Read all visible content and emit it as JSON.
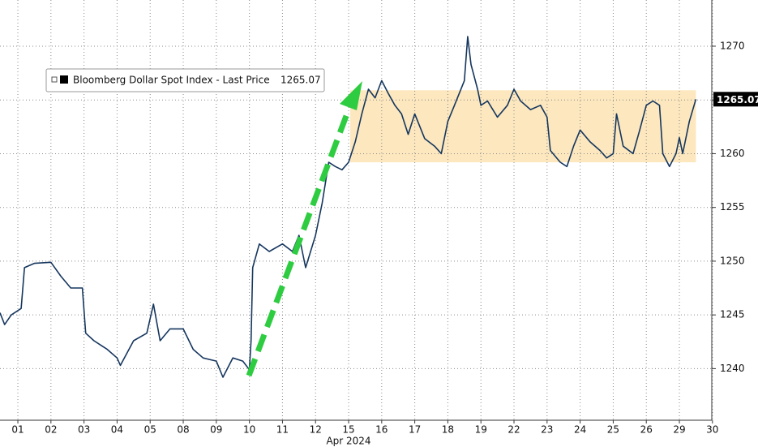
{
  "chart_data": {
    "type": "line",
    "series": [
      {
        "name": "Bloomberg Dollar Spot Index - Last Price",
        "color": "#15365e",
        "x": [
          -0.54,
          -0.4,
          -0.2,
          0.1,
          0.2,
          0.5,
          1,
          1.3,
          1.6,
          1.95,
          2.05,
          2.3,
          2.7,
          3,
          3.1,
          3.5,
          3.9,
          4.1,
          4.3,
          4.6,
          5,
          5.3,
          5.6,
          6,
          6.2,
          6.5,
          6.8,
          7,
          7.05,
          7.1,
          7.3,
          7.6,
          8,
          8.3,
          8.5,
          8.7,
          9,
          9.2,
          9.4,
          9.6,
          9.8,
          10,
          10.2,
          10.4,
          10.6,
          10.8,
          11,
          11.2,
          11.4,
          11.6,
          11.8,
          12,
          12.3,
          12.6,
          12.8,
          13,
          13.2,
          13.5,
          13.6,
          13.7,
          13.9,
          14,
          14.2,
          14.5,
          14.8,
          15,
          15.2,
          15.5,
          15.8,
          16,
          16.1,
          16.4,
          16.6,
          16.8,
          17,
          17.3,
          17.6,
          17.8,
          18,
          18.1,
          18.3,
          18.6,
          18.8,
          19,
          19.2,
          19.4,
          19.5,
          19.7,
          19.9,
          20,
          20.1,
          20.3,
          20.5
        ],
        "values": [
          1245.2,
          1244.1,
          1245,
          1245.6,
          1249.4,
          1249.8,
          1249.9,
          1248.6,
          1247.5,
          1247.5,
          1243.3,
          1242.6,
          1241.8,
          1241,
          1240.3,
          1242.6,
          1243.3,
          1246,
          1242.6,
          1243.7,
          1243.7,
          1241.8,
          1241,
          1240.7,
          1239.2,
          1241,
          1240.7,
          1239.9,
          1242.6,
          1249.4,
          1251.6,
          1250.9,
          1251.6,
          1250.9,
          1252.4,
          1249.4,
          1252.4,
          1255.4,
          1259.2,
          1258.8,
          1258.5,
          1259.2,
          1261.1,
          1263.7,
          1266,
          1265.2,
          1266.8,
          1265.6,
          1264.5,
          1263.7,
          1261.8,
          1263.7,
          1261.4,
          1260.7,
          1260,
          1263,
          1264.5,
          1266.8,
          1270.9,
          1268.3,
          1266,
          1264.5,
          1264.9,
          1263.4,
          1264.5,
          1266,
          1264.9,
          1264.1,
          1264.5,
          1263.4,
          1260.3,
          1259.2,
          1258.8,
          1260.7,
          1262.2,
          1261.1,
          1260.3,
          1259.6,
          1260,
          1263.7,
          1260.7,
          1260,
          1262.2,
          1264.5,
          1264.9,
          1264.5,
          1260,
          1258.8,
          1260,
          1261.5,
          1260,
          1263,
          1265.07
        ]
      }
    ],
    "xlim": [
      -0.54,
      20.98
    ],
    "xticks": [
      {
        "value": 0,
        "label": "01"
      },
      {
        "value": 1,
        "label": "02"
      },
      {
        "value": 2,
        "label": "03"
      },
      {
        "value": 3,
        "label": "04"
      },
      {
        "value": 4,
        "label": "05"
      },
      {
        "value": 5,
        "label": "08"
      },
      {
        "value": 6,
        "label": "09"
      },
      {
        "value": 7,
        "label": "10"
      },
      {
        "value": 8,
        "label": "11"
      },
      {
        "value": 9,
        "label": "12"
      },
      {
        "value": 10,
        "label": "15"
      },
      {
        "value": 11,
        "label": "16"
      },
      {
        "value": 12,
        "label": "17"
      },
      {
        "value": 13,
        "label": "18"
      },
      {
        "value": 14,
        "label": "19"
      },
      {
        "value": 15,
        "label": "22"
      },
      {
        "value": 16,
        "label": "23"
      },
      {
        "value": 17,
        "label": "24"
      },
      {
        "value": 18,
        "label": "25"
      },
      {
        "value": 19,
        "label": "26"
      },
      {
        "value": 20,
        "label": "29"
      },
      {
        "value": 21,
        "label": "30"
      }
    ],
    "x_group_label": "Apr 2024",
    "ylim": [
      1235.2,
      1274.3
    ],
    "yticks": [
      1240,
      1245,
      1250,
      1255,
      1260,
      1265,
      1270
    ],
    "grid": true,
    "range_band": {
      "x": [
        10.05,
        20.5
      ],
      "y": [
        1259.2,
        1265.9
      ],
      "color": "#fce3b3"
    }
  }
}
